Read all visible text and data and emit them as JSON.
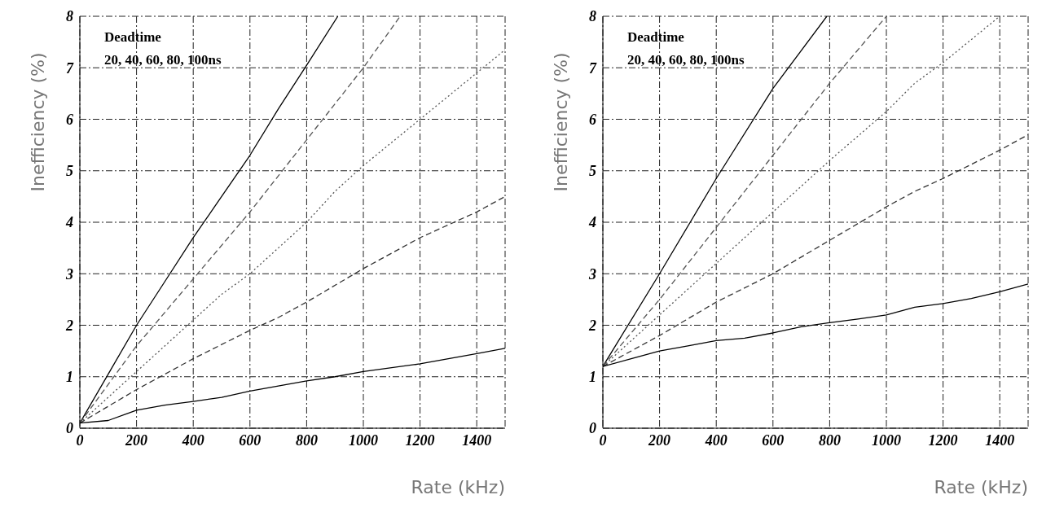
{
  "chart_data": [
    {
      "type": "line",
      "xlabel": "Rate (kHz)",
      "ylabel": "Inefficiency (%)",
      "annotations": [
        "Deadtime",
        "20, 40, 60, 80, 100ns"
      ],
      "xlim": [
        0,
        1500
      ],
      "ylim": [
        0,
        8
      ],
      "xticks": [
        0,
        200,
        400,
        600,
        800,
        1000,
        1200,
        1400
      ],
      "yticks": [
        0,
        1,
        2,
        3,
        4,
        5,
        6,
        7,
        8
      ],
      "grid": true,
      "marker": "none",
      "series": [
        {
          "color": "#000000",
          "line_style": "solid",
          "x": [
            0,
            100,
            200,
            300,
            400,
            500,
            600,
            700,
            800,
            910
          ],
          "values": [
            0.1,
            1.05,
            2.0,
            2.85,
            3.7,
            4.5,
            5.3,
            6.2,
            7.05,
            8.0
          ]
        },
        {
          "color": "#555555",
          "line_style": "dashed",
          "x": [
            0,
            200,
            400,
            600,
            800,
            1000,
            1130
          ],
          "values": [
            0.1,
            1.6,
            2.9,
            4.2,
            5.6,
            7.0,
            8.0
          ]
        },
        {
          "color": "#555555",
          "line_style": "dotted",
          "x": [
            0,
            200,
            400,
            500,
            600,
            800,
            900,
            1000,
            1200,
            1400,
            1500
          ],
          "values": [
            0.1,
            1.1,
            2.1,
            2.6,
            3.0,
            4.0,
            4.6,
            5.1,
            6.0,
            6.9,
            7.35
          ]
        },
        {
          "color": "#333333",
          "line_style": "dashed",
          "x": [
            0,
            200,
            400,
            600,
            700,
            800,
            1000,
            1200,
            1400,
            1500
          ],
          "values": [
            0.1,
            0.75,
            1.35,
            1.9,
            2.15,
            2.45,
            3.1,
            3.7,
            4.2,
            4.5
          ]
        },
        {
          "color": "#000000",
          "line_style": "solid",
          "x": [
            0,
            100,
            200,
            300,
            400,
            500,
            600,
            700,
            800,
            900,
            1000,
            1200,
            1400,
            1500
          ],
          "values": [
            0.1,
            0.15,
            0.35,
            0.45,
            0.52,
            0.6,
            0.72,
            0.82,
            0.92,
            1.0,
            1.1,
            1.25,
            1.45,
            1.55
          ]
        }
      ]
    },
    {
      "type": "line",
      "xlabel": "Rate (kHz)",
      "ylabel": "Inefficiency (%)",
      "annotations": [
        "Deadtime",
        "20, 40, 60, 80, 100ns"
      ],
      "xlim": [
        0,
        1500
      ],
      "ylim": [
        0,
        8
      ],
      "xticks": [
        0,
        200,
        400,
        600,
        800,
        1000,
        1200,
        1400
      ],
      "yticks": [
        0,
        1,
        2,
        3,
        4,
        5,
        6,
        7,
        8
      ],
      "grid": true,
      "marker": "none",
      "series": [
        {
          "color": "#000000",
          "line_style": "solid",
          "x": [
            0,
            200,
            400,
            600,
            790
          ],
          "values": [
            1.2,
            3.0,
            4.85,
            6.6,
            8.0
          ]
        },
        {
          "color": "#555555",
          "line_style": "dashed",
          "x": [
            0,
            200,
            400,
            600,
            800,
            1000
          ],
          "values": [
            1.2,
            2.5,
            3.9,
            5.3,
            6.7,
            8.0
          ]
        },
        {
          "color": "#555555",
          "line_style": "dotted",
          "x": [
            0,
            200,
            400,
            600,
            800,
            1000,
            1100,
            1200,
            1400
          ],
          "values": [
            1.2,
            2.2,
            3.2,
            4.2,
            5.2,
            6.15,
            6.7,
            7.1,
            8.0
          ]
        },
        {
          "color": "#333333",
          "line_style": "dashed",
          "x": [
            0,
            200,
            400,
            600,
            800,
            1000,
            1100,
            1200,
            1400,
            1500
          ],
          "values": [
            1.2,
            1.8,
            2.45,
            3.0,
            3.65,
            4.3,
            4.6,
            4.85,
            5.4,
            5.7
          ]
        },
        {
          "color": "#000000",
          "line_style": "solid",
          "x": [
            0,
            100,
            200,
            300,
            400,
            500,
            600,
            700,
            800,
            900,
            1000,
            1100,
            1200,
            1300,
            1400,
            1500
          ],
          "values": [
            1.2,
            1.35,
            1.5,
            1.6,
            1.7,
            1.75,
            1.85,
            1.97,
            2.05,
            2.12,
            2.2,
            2.35,
            2.42,
            2.52,
            2.65,
            2.8
          ]
        }
      ]
    }
  ]
}
